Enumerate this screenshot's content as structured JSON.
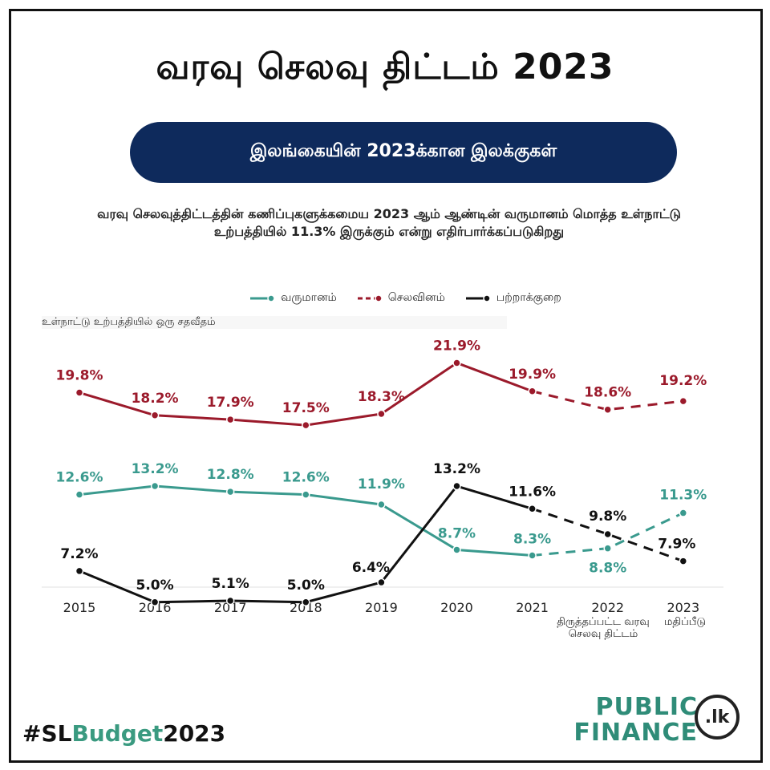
{
  "header": {
    "title": "வரவு செலவு திட்டம் 2023",
    "subtitle_pill": "இலங்கையின்  2023க்கான இலக்குகள்",
    "description": "வரவு செலவுத்திட்டத்தின் கணிப்புகளுக்கமைய 2023 ஆம் ஆண்டின் வருமானம் மொத்த உள்நாட்டு உற்பத்தியில் 11.3% இருக்கும் என்று எதிர்பார்க்கப்படுகிறது"
  },
  "chart_data": {
    "type": "line",
    "ylabel": "உள்நாட்டு உற்பத்தியில் ஒரு  சதவீதம்",
    "xlabel": "",
    "categories": [
      "2015",
      "2016",
      "2017",
      "2018",
      "2019",
      "2020",
      "2021",
      "2022",
      "2023"
    ],
    "category_sublabels": [
      "",
      "",
      "",
      "",
      "",
      "",
      "",
      "திருத்தப்பட்ட வரவு செலவு திட்டம்",
      "மதிப்பீடு"
    ],
    "projected_from_index": 6,
    "ylim": [
      0,
      25
    ],
    "grid": false,
    "legend_position": "top",
    "series": [
      {
        "name": "வருமானம்",
        "color": "#3a9a8e",
        "values": [
          12.6,
          13.2,
          12.8,
          12.6,
          11.9,
          8.7,
          8.3,
          8.8,
          11.3
        ],
        "labels": [
          "12.6%",
          "13.2%",
          "12.8%",
          "12.6%",
          "11.9%",
          "8.7%",
          "8.3%",
          "8.8%",
          "11.3%"
        ]
      },
      {
        "name": "செலவினம்",
        "color": "#9b1a2b",
        "values": [
          19.8,
          18.2,
          17.9,
          17.5,
          18.3,
          21.9,
          19.9,
          18.6,
          19.2
        ],
        "labels": [
          "19.8%",
          "18.2%",
          "17.9%",
          "17.5%",
          "18.3%",
          "21.9%",
          "19.9%",
          "18.6%",
          "19.2%"
        ]
      },
      {
        "name": "பற்றாக்குறை",
        "color": "#111111",
        "values": [
          7.2,
          5.0,
          5.1,
          5.0,
          6.4,
          13.2,
          11.6,
          9.8,
          7.9
        ],
        "labels": [
          "7.2%",
          "5.0%",
          "5.1%",
          "5.0%",
          "6.4%",
          "13.2%",
          "11.6%",
          "9.8%",
          "7.9%"
        ]
      }
    ]
  },
  "footer": {
    "hashtag_prefix": "#SL",
    "hashtag_highlight": "Budget",
    "hashtag_suffix": "2023",
    "logo_line1": "PUBLIC",
    "logo_line2": "FINANCE",
    "logo_seal": ".lk"
  }
}
